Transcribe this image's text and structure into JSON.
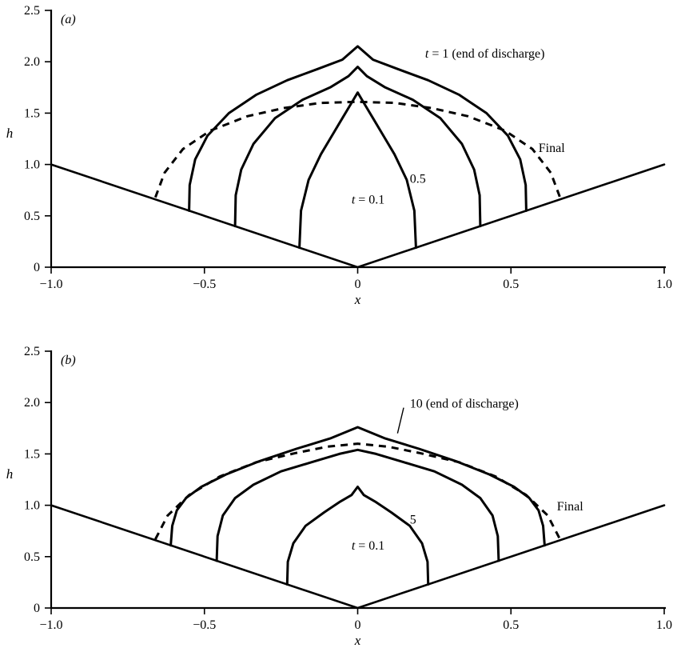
{
  "chart_data": [
    {
      "type": "line",
      "panel_label": "(a)",
      "xlabel": "x",
      "ylabel": "h",
      "xlim": [
        -1.0,
        1.0
      ],
      "ylim": [
        0,
        2.5
      ],
      "xticks": [
        -1.0,
        -0.5,
        0,
        0.5,
        1.0
      ],
      "xtick_labels": [
        "−1.0",
        "−0.5",
        "0",
        "0.5",
        "1.0"
      ],
      "yticks": [
        0,
        0.5,
        1.0,
        1.5,
        2.0,
        2.5
      ],
      "ytick_labels": [
        "0",
        "0.5",
        "1.0",
        "1.5",
        "2.0",
        "2.5"
      ],
      "series": [
        {
          "style": "solid",
          "role": "base",
          "x": [
            -1.0,
            0.0,
            1.0
          ],
          "y": [
            1.0,
            0.0,
            1.0
          ]
        },
        {
          "style": "solid",
          "t": "0.1",
          "x": [
            -0.19,
            -0.185,
            -0.16,
            -0.12,
            -0.08,
            -0.05,
            -0.02,
            0.0,
            0.02,
            0.05,
            0.08,
            0.12,
            0.16,
            0.185,
            0.19
          ],
          "y": [
            0.19,
            0.55,
            0.85,
            1.1,
            1.3,
            1.45,
            1.6,
            1.7,
            1.6,
            1.45,
            1.3,
            1.1,
            0.85,
            0.55,
            0.19
          ]
        },
        {
          "style": "solid",
          "t": "0.5",
          "x": [
            -0.4,
            -0.398,
            -0.38,
            -0.34,
            -0.27,
            -0.18,
            -0.09,
            -0.03,
            0.0,
            0.03,
            0.09,
            0.18,
            0.27,
            0.34,
            0.38,
            0.398,
            0.4
          ],
          "y": [
            0.4,
            0.7,
            0.95,
            1.2,
            1.45,
            1.63,
            1.75,
            1.86,
            1.95,
            1.86,
            1.75,
            1.63,
            1.45,
            1.2,
            0.95,
            0.7,
            0.4
          ]
        },
        {
          "style": "solid",
          "t": "1",
          "x": [
            -0.55,
            -0.548,
            -0.53,
            -0.49,
            -0.42,
            -0.33,
            -0.23,
            -0.13,
            -0.05,
            0.0,
            0.05,
            0.13,
            0.23,
            0.33,
            0.42,
            0.49,
            0.53,
            0.548,
            0.55
          ],
          "y": [
            0.55,
            0.8,
            1.05,
            1.28,
            1.5,
            1.68,
            1.82,
            1.93,
            2.02,
            2.15,
            2.02,
            1.93,
            1.82,
            1.68,
            1.5,
            1.28,
            1.05,
            0.8,
            0.55
          ]
        },
        {
          "style": "dashed",
          "role": "final",
          "x": [
            -0.66,
            -0.63,
            -0.57,
            -0.48,
            -0.36,
            -0.24,
            -0.12,
            0.0,
            0.12,
            0.24,
            0.36,
            0.48,
            0.57,
            0.63,
            0.66
          ],
          "y": [
            0.68,
            0.92,
            1.15,
            1.33,
            1.47,
            1.55,
            1.6,
            1.61,
            1.6,
            1.55,
            1.47,
            1.33,
            1.15,
            0.92,
            0.68
          ]
        }
      ],
      "annotations": [
        {
          "text": "t = 1 (end of discharge)",
          "x": 0.22,
          "y": 2.04
        },
        {
          "text": "Final",
          "x": 0.59,
          "y": 1.12
        },
        {
          "text": "0.5",
          "x": 0.17,
          "y": 0.82
        },
        {
          "text": "t = 0.1",
          "x": -0.02,
          "y": 0.62
        }
      ]
    },
    {
      "type": "line",
      "panel_label": "(b)",
      "xlabel": "x",
      "ylabel": "h",
      "xlim": [
        -1.0,
        1.0
      ],
      "ylim": [
        0,
        2.5
      ],
      "xticks": [
        -1.0,
        -0.5,
        0,
        0.5,
        1.0
      ],
      "xtick_labels": [
        "−1.0",
        "−0.5",
        "0",
        "0.5",
        "1.0"
      ],
      "yticks": [
        0,
        0.5,
        1.0,
        1.5,
        2.0,
        2.5
      ],
      "ytick_labels": [
        "0",
        "0.5",
        "1.0",
        "1.5",
        "2.0",
        "2.5"
      ],
      "series": [
        {
          "style": "solid",
          "role": "base",
          "x": [
            -1.0,
            0.0,
            1.0
          ],
          "y": [
            1.0,
            0.0,
            1.0
          ]
        },
        {
          "style": "solid",
          "t": "0.1",
          "x": [
            -0.23,
            -0.228,
            -0.21,
            -0.17,
            -0.11,
            -0.06,
            -0.02,
            0.0,
            0.02,
            0.06,
            0.11,
            0.17,
            0.21,
            0.228,
            0.23
          ],
          "y": [
            0.23,
            0.45,
            0.63,
            0.8,
            0.93,
            1.03,
            1.1,
            1.18,
            1.1,
            1.03,
            0.93,
            0.8,
            0.63,
            0.45,
            0.23
          ]
        },
        {
          "style": "solid",
          "t": "5",
          "x": [
            -0.46,
            -0.457,
            -0.44,
            -0.4,
            -0.34,
            -0.25,
            -0.15,
            -0.06,
            0.0,
            0.06,
            0.15,
            0.25,
            0.34,
            0.4,
            0.44,
            0.457,
            0.46
          ],
          "y": [
            0.46,
            0.7,
            0.9,
            1.07,
            1.2,
            1.33,
            1.42,
            1.5,
            1.54,
            1.5,
            1.42,
            1.33,
            1.2,
            1.07,
            0.9,
            0.7,
            0.46
          ]
        },
        {
          "style": "solid",
          "t": "10",
          "x": [
            -0.61,
            -0.605,
            -0.59,
            -0.56,
            -0.51,
            -0.43,
            -0.32,
            -0.2,
            -0.09,
            0.0,
            0.09,
            0.2,
            0.32,
            0.43,
            0.51,
            0.56,
            0.59,
            0.605,
            0.61
          ],
          "y": [
            0.61,
            0.8,
            0.95,
            1.07,
            1.18,
            1.3,
            1.43,
            1.55,
            1.65,
            1.76,
            1.65,
            1.55,
            1.43,
            1.3,
            1.18,
            1.07,
            0.95,
            0.8,
            0.61
          ]
        },
        {
          "style": "dashed",
          "role": "final",
          "x": [
            -0.66,
            -0.62,
            -0.55,
            -0.45,
            -0.33,
            -0.2,
            -0.1,
            0.0,
            0.1,
            0.2,
            0.33,
            0.45,
            0.55,
            0.62,
            0.66
          ],
          "y": [
            0.67,
            0.9,
            1.1,
            1.28,
            1.42,
            1.51,
            1.57,
            1.6,
            1.57,
            1.51,
            1.42,
            1.28,
            1.1,
            0.9,
            0.67
          ]
        }
      ],
      "annotations": [
        {
          "text": "10 (end of discharge)",
          "x": 0.17,
          "y": 1.95
        },
        {
          "text": "Final",
          "x": 0.65,
          "y": 0.95
        },
        {
          "text": "5",
          "x": 0.17,
          "y": 0.82
        },
        {
          "text": "t = 0.1",
          "x": -0.02,
          "y": 0.57
        }
      ],
      "leader": {
        "x1": 0.15,
        "y1": 1.95,
        "x2": 0.13,
        "y2": 1.7
      }
    }
  ]
}
